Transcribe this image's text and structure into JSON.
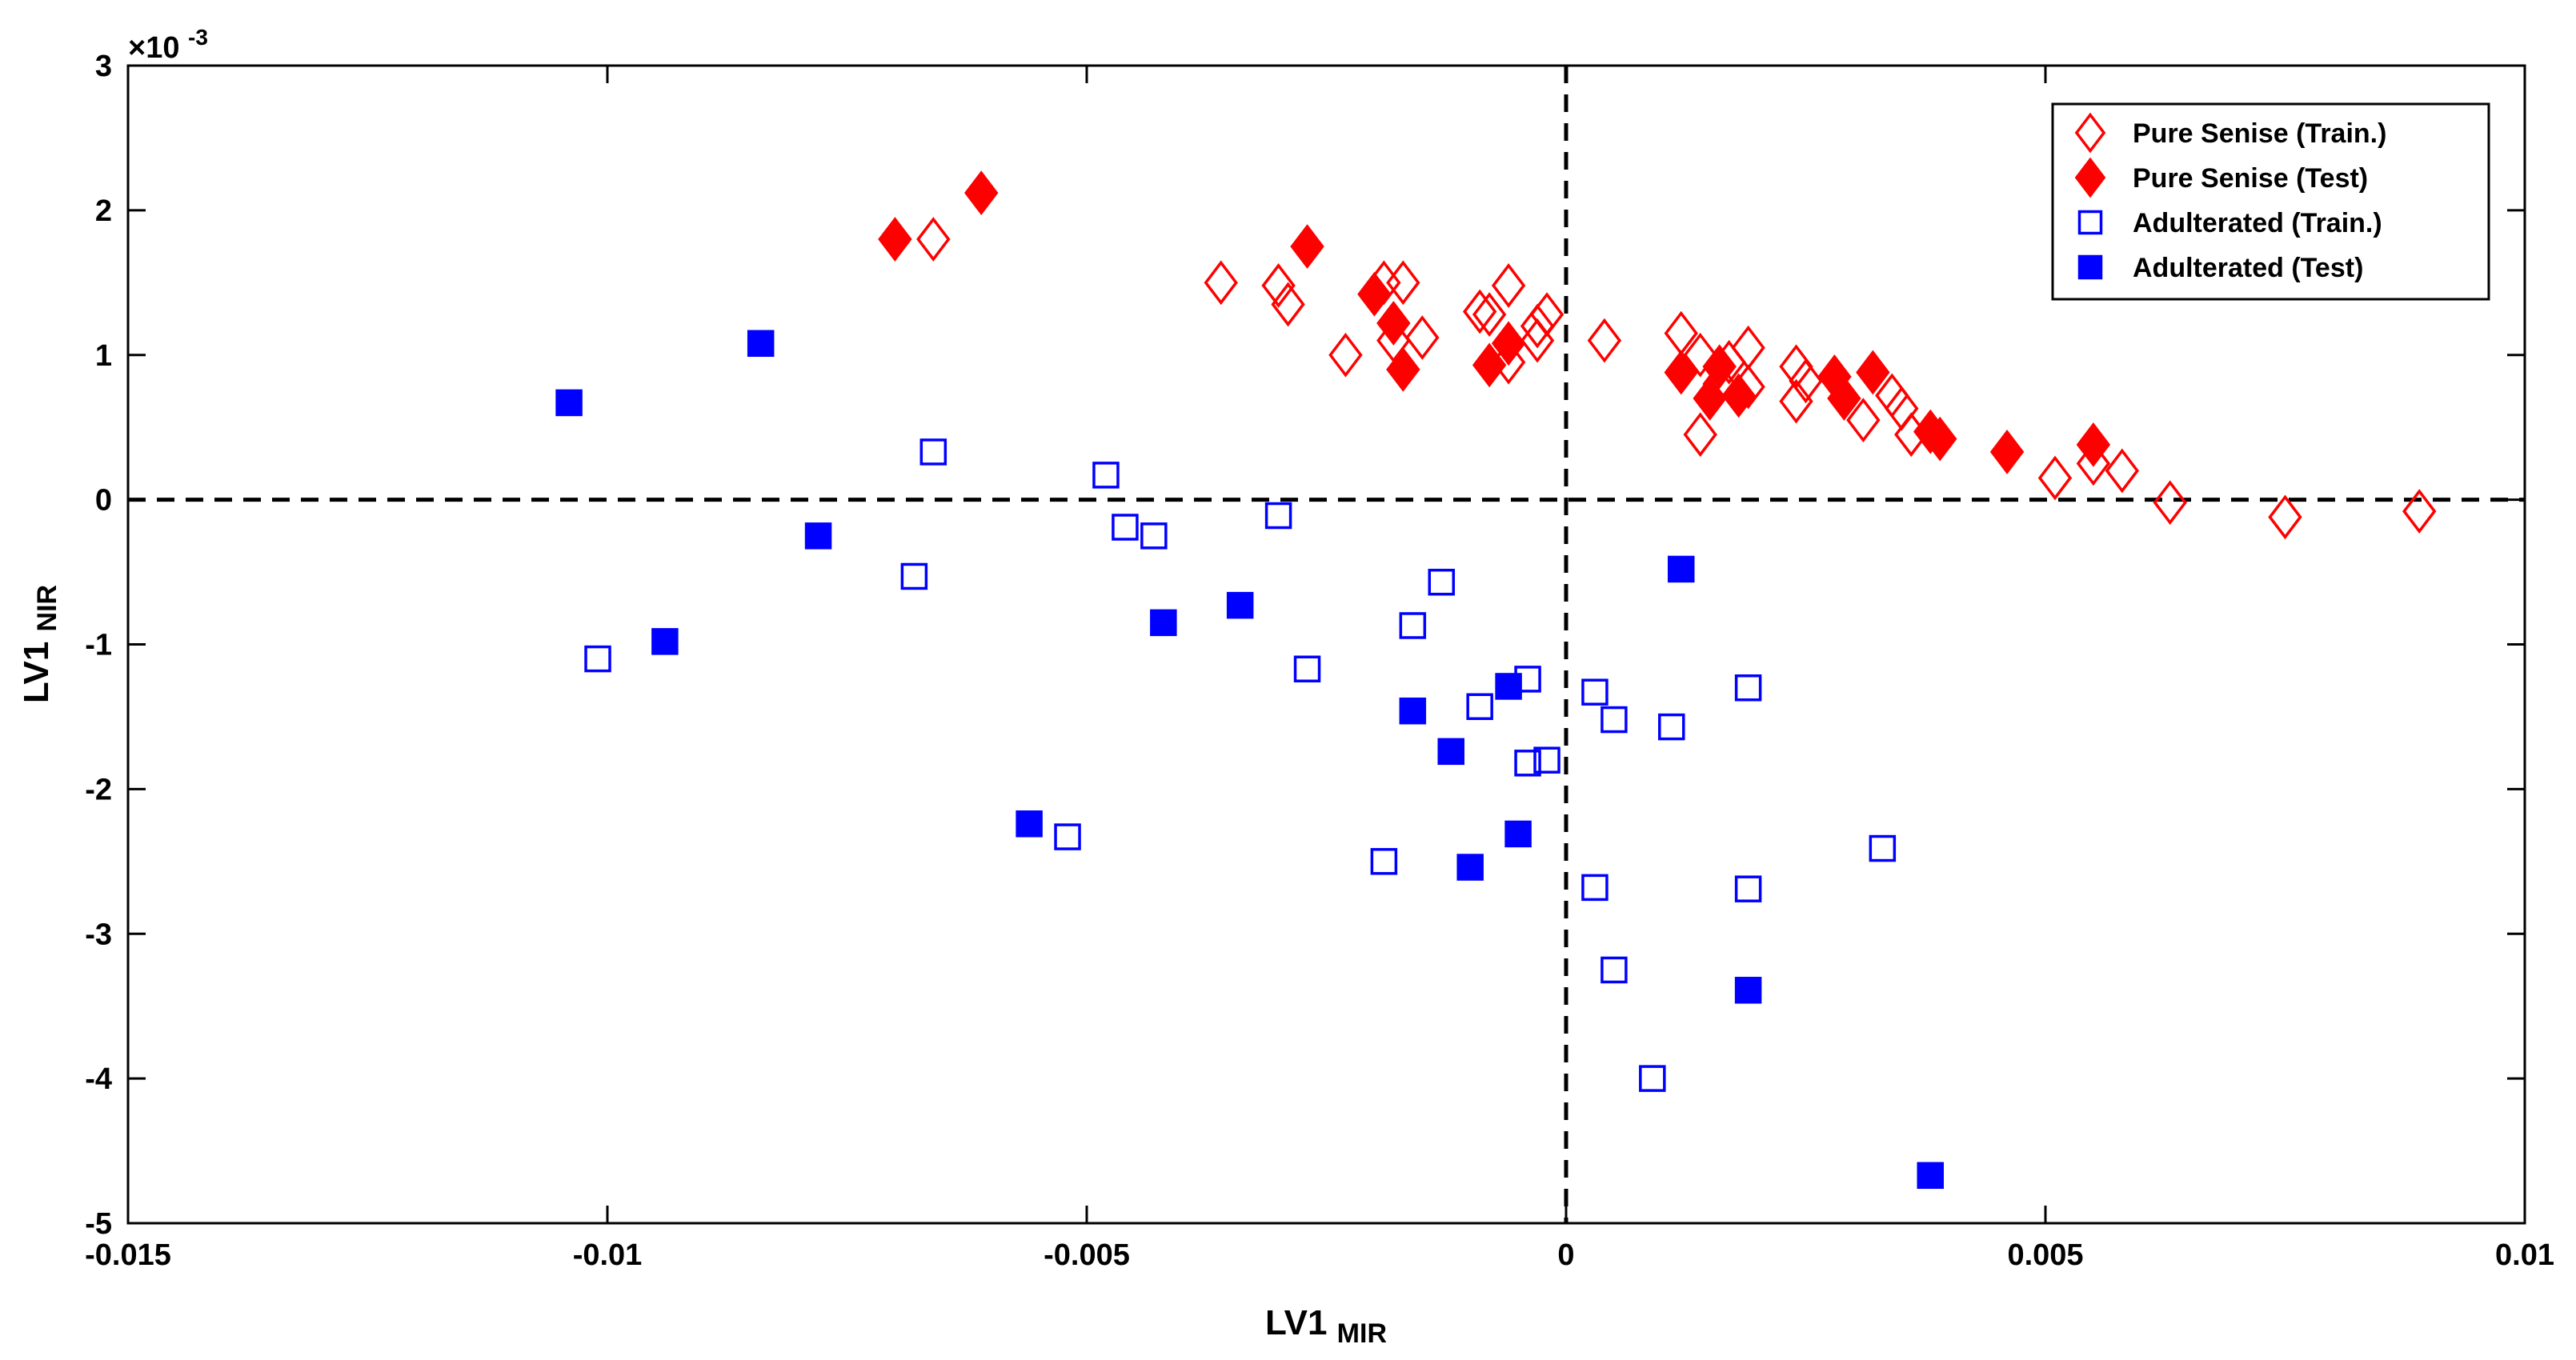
{
  "chart_data": {
    "type": "scatter",
    "title": "",
    "xlabel": "LV1",
    "xlabel_sub": "MIR",
    "ylabel": "LV1",
    "ylabel_sub": "NIR",
    "xlim": [
      -0.015,
      0.01
    ],
    "ylim": [
      -5,
      3
    ],
    "y_multiplier": "×10",
    "y_exponent": "-3",
    "x_ticks": [
      -0.015,
      -0.01,
      -0.005,
      0,
      0.005,
      0.01
    ],
    "x_tick_labels": [
      "-0.015",
      "-0.01",
      "-0.005",
      "0",
      "0.005",
      "0.01"
    ],
    "y_ticks": [
      -5,
      -4,
      -3,
      -2,
      -1,
      0,
      1,
      2,
      3
    ],
    "y_tick_labels": [
      "-5",
      "-4",
      "-3",
      "-2",
      "-1",
      "0",
      "1",
      "2",
      "3"
    ],
    "grid": false,
    "reference_lines": {
      "x": 0,
      "y": 0,
      "style": "dashed"
    },
    "legend_position": "top-right",
    "series": [
      {
        "name": "Pure Senise (Train.)",
        "marker": "diamond",
        "filled": false,
        "color": "#ff0000",
        "points": [
          [
            -0.0066,
            1.8
          ],
          [
            -0.0036,
            1.5
          ],
          [
            -0.003,
            1.48
          ],
          [
            -0.0029,
            1.35
          ],
          [
            -0.0023,
            1.0
          ],
          [
            -0.0019,
            1.5
          ],
          [
            -0.0017,
            1.5
          ],
          [
            -0.0018,
            1.1
          ],
          [
            -0.0015,
            1.12
          ],
          [
            -0.0009,
            1.3
          ],
          [
            -0.0008,
            1.28
          ],
          [
            -0.0006,
            1.48
          ],
          [
            -0.0006,
            0.95
          ],
          [
            -0.0003,
            1.1
          ],
          [
            -0.0003,
            1.2
          ],
          [
            -0.0002,
            1.28
          ],
          [
            0.0004,
            1.1
          ],
          [
            0.0012,
            1.15
          ],
          [
            0.0014,
            1.0
          ],
          [
            0.0014,
            0.45
          ],
          [
            0.0016,
            0.8
          ],
          [
            0.0017,
            0.95
          ],
          [
            0.0019,
            1.05
          ],
          [
            0.0019,
            0.78
          ],
          [
            0.0024,
            0.68
          ],
          [
            0.0024,
            0.92
          ],
          [
            0.0025,
            0.82
          ],
          [
            0.0031,
            0.55
          ],
          [
            0.0034,
            0.72
          ],
          [
            0.0035,
            0.63
          ],
          [
            0.0036,
            0.45
          ],
          [
            0.0051,
            0.15
          ],
          [
            0.0055,
            0.25
          ],
          [
            0.0058,
            0.2
          ],
          [
            0.0063,
            -0.02
          ],
          [
            0.0075,
            -0.12
          ],
          [
            0.0089,
            -0.08
          ]
        ]
      },
      {
        "name": "Pure Senise (Test)",
        "marker": "diamond",
        "filled": true,
        "color": "#ff0000",
        "points": [
          [
            -0.007,
            1.8
          ],
          [
            -0.0061,
            2.12
          ],
          [
            -0.0027,
            1.75
          ],
          [
            -0.002,
            1.42
          ],
          [
            -0.0018,
            1.22
          ],
          [
            -0.0017,
            0.9
          ],
          [
            -0.0008,
            0.93
          ],
          [
            -0.0006,
            1.08
          ],
          [
            0.0012,
            0.88
          ],
          [
            0.0015,
            0.7
          ],
          [
            0.0016,
            0.92
          ],
          [
            0.0018,
            0.72
          ],
          [
            0.0028,
            0.85
          ],
          [
            0.0029,
            0.7
          ],
          [
            0.0032,
            0.88
          ],
          [
            0.0038,
            0.47
          ],
          [
            0.0039,
            0.42
          ],
          [
            0.0046,
            0.33
          ],
          [
            0.0055,
            0.38
          ]
        ]
      },
      {
        "name": "Adulterated (Train.)",
        "marker": "square",
        "filled": false,
        "color": "#0000ff",
        "points": [
          [
            -0.0101,
            -1.1
          ],
          [
            -0.0068,
            -0.53
          ],
          [
            -0.0066,
            0.33
          ],
          [
            -0.0052,
            -2.33
          ],
          [
            -0.0048,
            0.17
          ],
          [
            -0.0046,
            -0.19
          ],
          [
            -0.0043,
            -0.25
          ],
          [
            -0.003,
            -0.11
          ],
          [
            -0.0027,
            -1.17
          ],
          [
            -0.0019,
            -2.5
          ],
          [
            -0.0016,
            -0.87
          ],
          [
            -0.0013,
            -0.57
          ],
          [
            -0.0009,
            -1.43
          ],
          [
            -0.0004,
            -1.24
          ],
          [
            -0.0004,
            -1.82
          ],
          [
            -0.0002,
            -1.8
          ],
          [
            0.0003,
            -1.33
          ],
          [
            0.0003,
            -2.68
          ],
          [
            0.0005,
            -1.52
          ],
          [
            0.0005,
            -3.25
          ],
          [
            0.0009,
            -4.0
          ],
          [
            0.0011,
            -1.57
          ],
          [
            0.0019,
            -1.3
          ],
          [
            0.0019,
            -2.69
          ],
          [
            0.0033,
            -2.41
          ]
        ]
      },
      {
        "name": "Adulterated (Test)",
        "marker": "square",
        "filled": true,
        "color": "#0000ff",
        "points": [
          [
            -0.0104,
            0.67
          ],
          [
            -0.0094,
            -0.98
          ],
          [
            -0.0084,
            1.08
          ],
          [
            -0.0078,
            -0.25
          ],
          [
            -0.0056,
            -2.24
          ],
          [
            -0.0042,
            -0.85
          ],
          [
            -0.0034,
            -0.73
          ],
          [
            -0.0016,
            -1.46
          ],
          [
            -0.0012,
            -1.74
          ],
          [
            -0.001,
            -2.54
          ],
          [
            -0.0006,
            -1.29
          ],
          [
            -0.0005,
            -2.31
          ],
          [
            0.0012,
            -0.48
          ],
          [
            0.0019,
            -3.39
          ],
          [
            0.0038,
            -4.67
          ]
        ]
      }
    ]
  }
}
